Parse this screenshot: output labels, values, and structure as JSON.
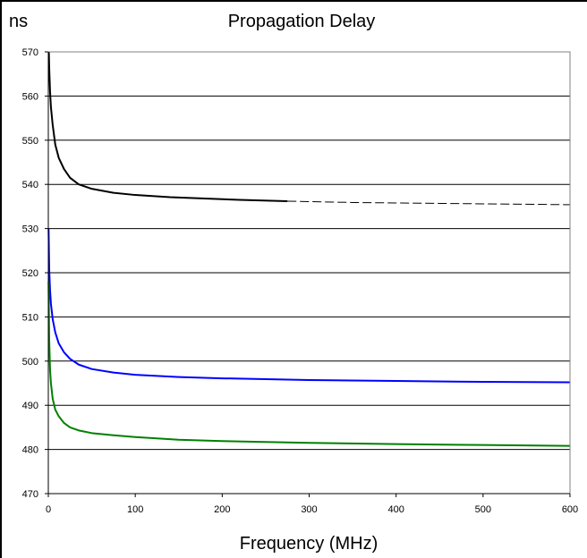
{
  "chart_data": {
    "type": "line",
    "title": "Propagation Delay",
    "ylabel": "ns",
    "xlabel": "Frequency (MHz)",
    "xlim": [
      0,
      600
    ],
    "ylim": [
      470,
      570
    ],
    "x_ticks": [
      0,
      100,
      200,
      300,
      400,
      500,
      600
    ],
    "y_ticks": [
      470,
      480,
      490,
      500,
      510,
      520,
      530,
      540,
      550,
      560,
      570
    ],
    "grid": "horizontal",
    "legend": "none",
    "plot_background": "#ffffff",
    "series": [
      {
        "color": "#000000",
        "style": "solid",
        "x": [
          0.6,
          1,
          2,
          3,
          5,
          8,
          12,
          18,
          25,
          35,
          50,
          75,
          100,
          140,
          180,
          220,
          275
        ],
        "y": [
          570,
          566.5,
          561,
          557.5,
          553.5,
          549,
          546,
          543.5,
          541.5,
          540,
          539,
          538.1,
          537.6,
          537.1,
          536.8,
          536.5,
          536.2
        ]
      },
      {
        "color": "#000000",
        "style": "dashed",
        "x": [
          275,
          300,
          350,
          400,
          450,
          500,
          550,
          600
        ],
        "y": [
          536.2,
          536.1,
          535.9,
          535.8,
          535.7,
          535.6,
          535.5,
          535.4
        ]
      },
      {
        "color": "#0000ff",
        "style": "solid",
        "x": [
          0.3,
          1,
          2,
          3,
          5,
          8,
          12,
          18,
          25,
          35,
          50,
          75,
          100,
          150,
          200,
          300,
          400,
          500,
          600
        ],
        "y": [
          530,
          521,
          516,
          513,
          509.5,
          506.5,
          504,
          502,
          500.5,
          499.2,
          498.2,
          497.4,
          496.9,
          496.4,
          496.1,
          495.7,
          495.5,
          495.3,
          495.2
        ]
      },
      {
        "color": "#008000",
        "style": "solid",
        "x": [
          0.3,
          1,
          2,
          3,
          5,
          8,
          12,
          18,
          25,
          35,
          50,
          75,
          100,
          150,
          200,
          300,
          400,
          500,
          600
        ],
        "y": [
          518,
          505,
          498,
          495,
          491.5,
          489,
          487.5,
          486,
          485,
          484.3,
          483.7,
          483.2,
          482.8,
          482.2,
          481.9,
          481.5,
          481.2,
          481,
          480.8
        ]
      }
    ]
  }
}
